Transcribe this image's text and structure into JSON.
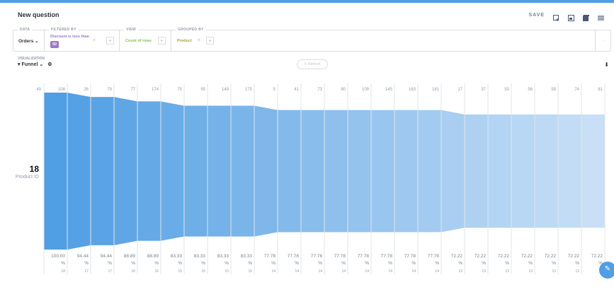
{
  "header": {
    "title": "New question",
    "save_label": "SAVE",
    "icons": [
      "new-dashboard-icon",
      "embed-icon",
      "bookmark-icon",
      "menu-icon"
    ]
  },
  "query": {
    "data_label": "DATA",
    "data_value": "Orders",
    "filter_label": "FILTERED BY",
    "filter_text": "Discount is less than",
    "filter_value": "50",
    "view_label": "VIEW",
    "view_value": "Count of rows",
    "group_label": "GROUPED BY",
    "group_value": "Product",
    "more_label": "..."
  },
  "visualization": {
    "label": "VISUALIZATION",
    "value": "Funnel"
  },
  "refresh_label": "Refresh",
  "colors": {
    "accent": "#509ee3",
    "filter": "#9e77c4",
    "view": "#88bf4d",
    "group": "#a6a33e"
  },
  "chart_data": {
    "type": "funnel",
    "metric_value": "18",
    "metric_label": "Product ID",
    "first_label": "49",
    "steps": [
      "108",
      "26",
      "79",
      "77",
      "174",
      "75",
      "95",
      "149",
      "175",
      "5",
      "41",
      "73",
      "80",
      "109",
      "145",
      "163",
      "181",
      "17",
      "37",
      "50",
      "56",
      "59",
      "74",
      "81"
    ],
    "values": [
      18,
      17,
      17,
      16,
      16,
      15,
      15,
      15,
      15,
      14,
      14,
      14,
      14,
      14,
      14,
      14,
      14,
      13,
      13,
      13,
      13,
      13,
      13,
      13
    ],
    "percents": [
      "100.00",
      "94.44",
      "94.44",
      "88.89",
      "88.89",
      "83.33",
      "83.33",
      "83.33",
      "83.33",
      "77.78",
      "77.78",
      "77.78",
      "77.78",
      "77.78",
      "77.78",
      "77.78",
      "77.78",
      "72.22",
      "72.22",
      "72.22",
      "72.22",
      "72.22",
      "72.22",
      "72.22"
    ]
  }
}
